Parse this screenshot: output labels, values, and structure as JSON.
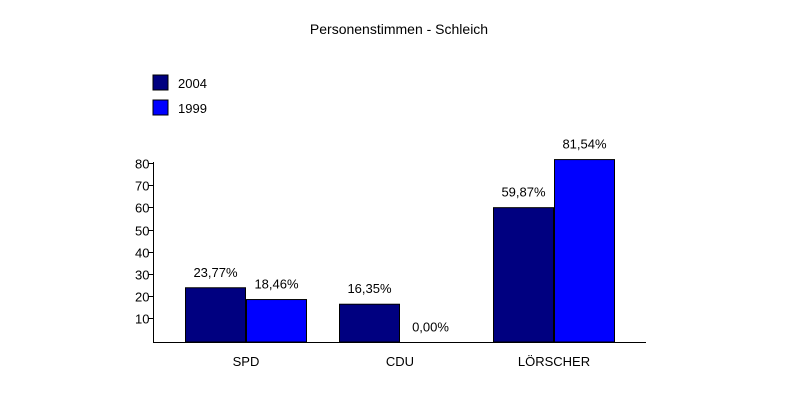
{
  "chart_data": {
    "type": "bar",
    "title": "Personenstimmen - Schleich",
    "xlabel": "",
    "ylabel": "",
    "ylim": [
      0,
      80
    ],
    "yticks": [
      10,
      20,
      30,
      40,
      50,
      60,
      70,
      80
    ],
    "grid": false,
    "legend_position": "top-left",
    "categories": [
      "SPD",
      "CDU",
      "LÖRSCHER"
    ],
    "series": [
      {
        "name": "2004",
        "color": "#000080",
        "values": [
          23.77,
          16.35,
          59.87
        ],
        "labels": [
          "23,77%",
          "16,35%",
          "59,87%"
        ]
      },
      {
        "name": "1999",
        "color": "#0000FF",
        "values": [
          18.46,
          0.0,
          81.54
        ],
        "labels": [
          "18,46%",
          "0,00%",
          "81,54%"
        ]
      }
    ]
  }
}
